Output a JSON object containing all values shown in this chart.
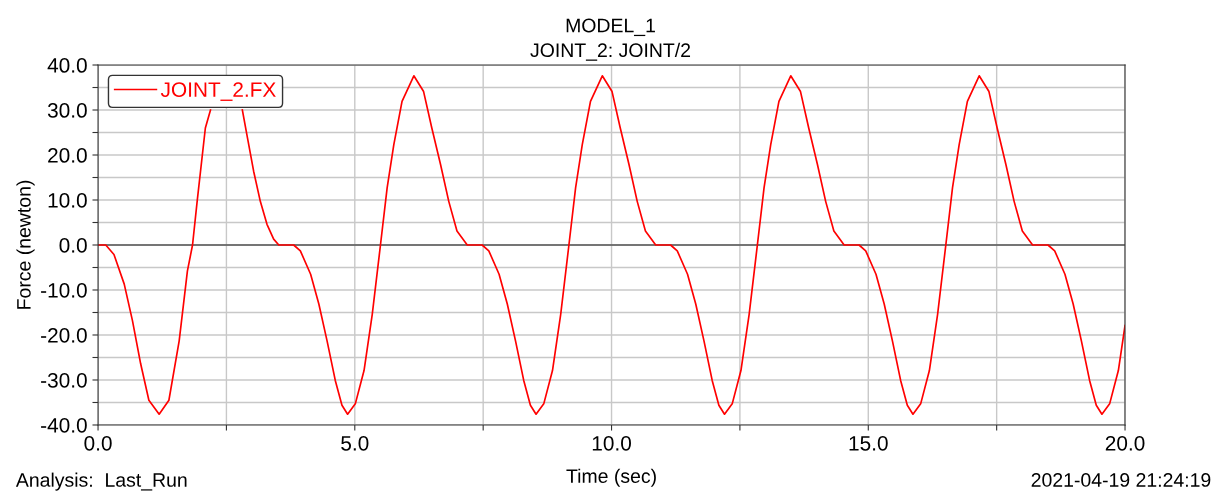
{
  "chart_data": {
    "type": "line",
    "title": "MODEL_1",
    "subtitle": "JOINT_2: JOINT/2",
    "xlabel": "Time (sec)",
    "ylabel": "Force (newton)",
    "annotations": [
      "Analysis:  Last_Run",
      "2021-04-19 21:24:19"
    ],
    "x": [
      0,
      0.15,
      0.31,
      0.51,
      0.67,
      0.83,
      0.99,
      1.19,
      1.38,
      1.58,
      1.74,
      1.84,
      1.93,
      2.09,
      2.19,
      2.35,
      2.7,
      2.81,
      2.91,
      3.03,
      3.16,
      3.29,
      3.42,
      3.52,
      3.81,
      3.94,
      4.14,
      4.3,
      4.46,
      4.62,
      4.75,
      4.86,
      5.01,
      5.18,
      5.34,
      5.5,
      5.63,
      5.76,
      5.92,
      6.15,
      6.34,
      6.5,
      6.67,
      6.83,
      6.99,
      7.19,
      7.48,
      7.61,
      7.81,
      7.97,
      8.13,
      8.29,
      8.42,
      8.53,
      8.68,
      8.85,
      9.01,
      9.17,
      9.3,
      9.43,
      9.59,
      9.82,
      10.01,
      10.17,
      10.34,
      10.5,
      10.66,
      10.86,
      11.15,
      11.28,
      11.48,
      11.64,
      11.8,
      11.96,
      12.09,
      12.2,
      12.35,
      12.52,
      12.68,
      12.84,
      12.97,
      13.1,
      13.26,
      13.49,
      13.68,
      13.84,
      14.01,
      14.17,
      14.33,
      14.53,
      14.82,
      14.95,
      15.15,
      15.31,
      15.47,
      15.63,
      15.76,
      15.87,
      16.02,
      16.19,
      16.35,
      16.51,
      16.64,
      16.77,
      16.93,
      17.16,
      17.35,
      17.51,
      17.68,
      17.84,
      18.0,
      18.2,
      18.5,
      18.63,
      18.83,
      18.99,
      19.15,
      19.31,
      19.44,
      19.55,
      19.7,
      19.87,
      20.0
    ],
    "series": [
      {
        "name": "JOINT_2.FX",
        "color": "#ff0000",
        "values": [
          0,
          0,
          -2.1,
          -8.7,
          -16.8,
          -26.4,
          -34.5,
          -37.6,
          -34.5,
          -21.3,
          -5.8,
          0,
          9.7,
          26.0,
          30.0,
          null,
          null,
          30.0,
          23.8,
          16.4,
          9.7,
          4.6,
          1.3,
          0,
          0,
          -1.3,
          -6.5,
          -13.1,
          -21.3,
          -30.1,
          -35.6,
          -37.6,
          -35.3,
          -27.9,
          -15.4,
          0,
          12.7,
          22.3,
          31.9,
          37.6,
          34.1,
          26.0,
          17.9,
          9.7,
          3.1,
          0,
          0,
          -1.3,
          -6.5,
          -13.1,
          -21.3,
          -30.1,
          -35.6,
          -37.6,
          -35.3,
          -27.9,
          -15.4,
          0,
          12.7,
          22.3,
          31.9,
          37.6,
          34.1,
          26.0,
          17.9,
          9.7,
          3.1,
          0,
          0,
          -1.3,
          -6.5,
          -13.1,
          -21.3,
          -30.1,
          -35.6,
          -37.6,
          -35.3,
          -27.9,
          -15.4,
          0,
          12.7,
          22.3,
          31.9,
          37.6,
          34.1,
          26.0,
          17.9,
          9.7,
          3.1,
          0,
          0,
          -1.3,
          -6.5,
          -13.1,
          -21.3,
          -30.1,
          -35.6,
          -37.6,
          -35.3,
          -27.9,
          -15.4,
          0,
          12.7,
          22.3,
          31.9,
          37.6,
          34.1,
          26.0,
          17.9,
          9.7,
          3.1,
          0,
          0,
          -1.3,
          -6.5,
          -13.1,
          -21.3,
          -30.1,
          -35.6,
          -37.6,
          -35.3,
          -27.9,
          -17.9
        ]
      }
    ],
    "xlim": [
      0,
      20
    ],
    "xticks": [
      {
        "value": 0,
        "label": "0.0"
      },
      {
        "value": 2.5,
        "label": null
      },
      {
        "value": 5,
        "label": "5.0"
      },
      {
        "value": 7.5,
        "label": null
      },
      {
        "value": 10,
        "label": "10.0"
      },
      {
        "value": 12.5,
        "label": null
      },
      {
        "value": 15,
        "label": "15.0"
      },
      {
        "value": 17.5,
        "label": null
      },
      {
        "value": 20,
        "label": "20.0"
      }
    ],
    "ylim": [
      -40,
      40
    ],
    "yticks": [
      {
        "value": -40,
        "label": "-40.0"
      },
      {
        "value": -35,
        "label": null
      },
      {
        "value": -30,
        "label": "-30.0"
      },
      {
        "value": -25,
        "label": null
      },
      {
        "value": -20,
        "label": "-20.0"
      },
      {
        "value": -15,
        "label": null
      },
      {
        "value": -10,
        "label": "-10.0"
      },
      {
        "value": -5,
        "label": null
      },
      {
        "value": 0,
        "label": "0.0"
      },
      {
        "value": 5,
        "label": null
      },
      {
        "value": 10,
        "label": "10.0"
      },
      {
        "value": 15,
        "label": null
      },
      {
        "value": 20,
        "label": "20.0"
      },
      {
        "value": 25,
        "label": null
      },
      {
        "value": 30,
        "label": "30.0"
      },
      {
        "value": 35,
        "label": null
      },
      {
        "value": 40,
        "label": "40.0"
      }
    ],
    "ref_lines": [
      {
        "axis": "y",
        "value": 0,
        "color": "#555555"
      }
    ],
    "grid": true,
    "legend": "top left",
    "marker": "none",
    "line_style": "solid"
  }
}
